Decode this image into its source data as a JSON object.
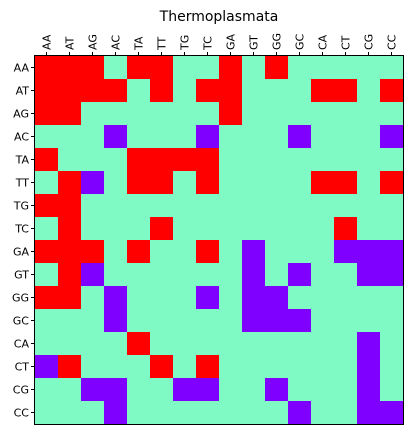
{
  "chart_data": {
    "type": "heatmap",
    "title": "Thermoplasmata",
    "x_labels": [
      "AA",
      "AT",
      "AG",
      "AC",
      "TA",
      "TT",
      "TG",
      "TC",
      "GA",
      "GT",
      "GG",
      "GC",
      "CA",
      "CT",
      "CG",
      "CC"
    ],
    "y_labels": [
      "AA",
      "AT",
      "AG",
      "AC",
      "TA",
      "TT",
      "TG",
      "TC",
      "GA",
      "GT",
      "GG",
      "GC",
      "CA",
      "CT",
      "CG",
      "CC"
    ],
    "x_axis_position": "top",
    "grid": false,
    "legend": "none",
    "categories": {
      "0": {
        "color": "#7ffac5"
      },
      "1": {
        "color": "#7f00ff"
      },
      "2": {
        "color": "#ff0000"
      }
    },
    "values": [
      [
        2,
        2,
        2,
        0,
        2,
        2,
        0,
        0,
        2,
        0,
        2,
        0,
        0,
        0,
        0,
        0
      ],
      [
        2,
        2,
        2,
        2,
        0,
        2,
        0,
        2,
        2,
        0,
        0,
        0,
        2,
        2,
        0,
        2
      ],
      [
        2,
        2,
        0,
        0,
        0,
        0,
        0,
        0,
        2,
        0,
        0,
        0,
        0,
        0,
        0,
        0
      ],
      [
        0,
        0,
        0,
        1,
        0,
        0,
        0,
        1,
        0,
        0,
        0,
        1,
        0,
        0,
        0,
        1
      ],
      [
        2,
        0,
        0,
        0,
        2,
        2,
        2,
        2,
        0,
        0,
        0,
        0,
        0,
        0,
        0,
        0
      ],
      [
        0,
        2,
        1,
        0,
        2,
        2,
        0,
        2,
        0,
        0,
        0,
        0,
        2,
        2,
        0,
        2
      ],
      [
        2,
        2,
        0,
        0,
        0,
        0,
        0,
        0,
        0,
        0,
        0,
        0,
        0,
        0,
        0,
        0
      ],
      [
        0,
        2,
        0,
        0,
        0,
        2,
        0,
        0,
        0,
        0,
        0,
        0,
        0,
        2,
        0,
        0
      ],
      [
        2,
        2,
        2,
        0,
        2,
        0,
        0,
        2,
        0,
        1,
        0,
        0,
        0,
        1,
        1,
        1
      ],
      [
        0,
        2,
        1,
        0,
        0,
        0,
        0,
        0,
        0,
        1,
        0,
        1,
        0,
        0,
        1,
        1
      ],
      [
        2,
        2,
        0,
        1,
        0,
        0,
        0,
        1,
        0,
        1,
        1,
        0,
        0,
        0,
        0,
        0
      ],
      [
        0,
        0,
        0,
        1,
        0,
        0,
        0,
        0,
        0,
        1,
        1,
        1,
        0,
        0,
        0,
        0
      ],
      [
        0,
        0,
        0,
        0,
        2,
        0,
        0,
        0,
        0,
        0,
        0,
        0,
        0,
        0,
        1,
        0
      ],
      [
        1,
        2,
        0,
        0,
        0,
        2,
        0,
        2,
        0,
        0,
        0,
        0,
        0,
        0,
        1,
        0
      ],
      [
        0,
        0,
        1,
        1,
        0,
        0,
        1,
        1,
        0,
        0,
        1,
        0,
        0,
        0,
        1,
        0
      ],
      [
        0,
        0,
        0,
        1,
        0,
        0,
        0,
        0,
        0,
        0,
        0,
        1,
        0,
        0,
        1,
        1
      ]
    ]
  }
}
